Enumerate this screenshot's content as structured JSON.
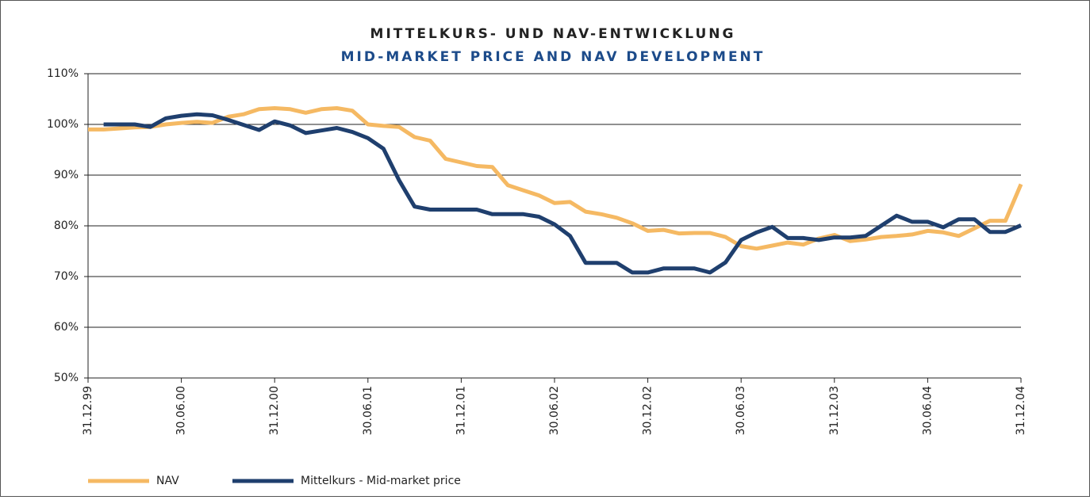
{
  "chart_data": {
    "type": "line",
    "title": "MITTELKURS- UND NAV-ENTWICKLUNG",
    "subtitle": "MID-MARKET PRICE AND NAV DEVELOPMENT",
    "categories": [
      "31.12.99",
      null,
      null,
      null,
      null,
      null,
      "30.06.00",
      null,
      null,
      null,
      null,
      null,
      "31.12.00",
      null,
      null,
      null,
      null,
      null,
      "30.06.01",
      null,
      null,
      null,
      null,
      null,
      "31.12.01",
      null,
      null,
      null,
      null,
      null,
      "30.06.02",
      null,
      null,
      null,
      null,
      null,
      "30.12.02",
      null,
      null,
      null,
      null,
      null,
      "30.06.03",
      null,
      null,
      null,
      null,
      null,
      "31.12.03",
      null,
      null,
      null,
      null,
      null,
      "30.06.04",
      null,
      null,
      null,
      null,
      null,
      "31.12.04"
    ],
    "series": [
      {
        "name": "NAV",
        "color": "#f5b963",
        "values": [
          99,
          99,
          99.2,
          99.4,
          99.5,
          100,
          100.3,
          100.5,
          100.3,
          101.5,
          102,
          103,
          103.2,
          103,
          102.3,
          103,
          103.2,
          102.7,
          100,
          99.7,
          99.5,
          97.5,
          96.8,
          93.2,
          92.5,
          91.8,
          91.6,
          88,
          87,
          86,
          84.5,
          84.7,
          82.8,
          82.3,
          81.6,
          80.5,
          79,
          79.2,
          78.5,
          78.6,
          78.6,
          77.8,
          76,
          75.5,
          76.1,
          76.7,
          76.3,
          77.5,
          78.2,
          77,
          77.3,
          77.8,
          78,
          78.3,
          79,
          78.7,
          78,
          79.5,
          81,
          81,
          88.2
        ]
      },
      {
        "name": "Mittelkurs - Mid-market price",
        "color": "#1f3f6e",
        "values": [
          null,
          100,
          100,
          100,
          99.5,
          101.2,
          101.7,
          102,
          101.8,
          100.9,
          99.9,
          98.9,
          100.6,
          99.8,
          98.3,
          98.8,
          99.3,
          98.5,
          97.3,
          95.2,
          89,
          83.8,
          83.2,
          83.2,
          83.2,
          83.2,
          82.3,
          82.3,
          82.3,
          81.8,
          80.3,
          78,
          72.7,
          72.7,
          72.7,
          70.8,
          70.8,
          71.6,
          71.6,
          71.6,
          70.8,
          72.8,
          77.2,
          78.7,
          79.8,
          77.6,
          77.6,
          77.2,
          77.7,
          77.7,
          78,
          80,
          82,
          80.8,
          80.8,
          79.7,
          81.3,
          81.3,
          78.8,
          78.8,
          80.1
        ]
      }
    ],
    "ylim": [
      50,
      110
    ],
    "yticks": [
      {
        "value": 50,
        "label": "50%"
      },
      {
        "value": 60,
        "label": "60%"
      },
      {
        "value": 70,
        "label": "70%"
      },
      {
        "value": 80,
        "label": "80%"
      },
      {
        "value": 90,
        "label": "90%"
      },
      {
        "value": 100,
        "label": "100%"
      },
      {
        "value": 110,
        "label": "110%"
      }
    ],
    "grid": true,
    "legend": "bottom"
  }
}
